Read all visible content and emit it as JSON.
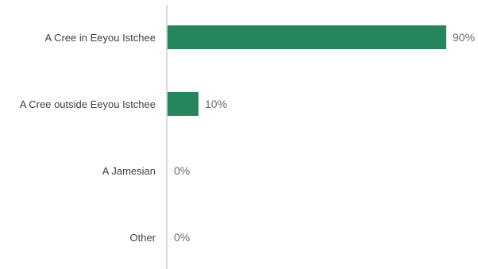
{
  "chart_data": {
    "type": "bar",
    "orientation": "horizontal",
    "categories": [
      "A Cree in Eeyou Istchee",
      "A Cree outside Eeyou Istchee",
      "A Jamesian",
      "Other"
    ],
    "values": [
      90,
      10,
      0,
      0
    ],
    "value_labels": [
      "90%",
      "10%",
      "0%",
      "0%"
    ],
    "xlim": [
      0,
      100
    ],
    "unit": "%",
    "grid": false,
    "legend": "none",
    "bar_color": "#26855a",
    "axis_color": "#d9d9d9"
  }
}
